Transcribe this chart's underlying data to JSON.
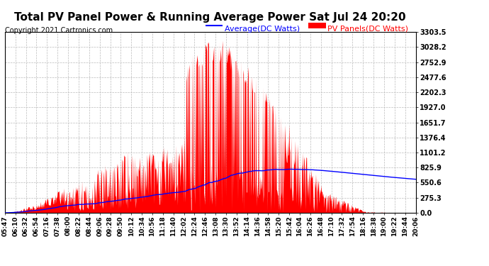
{
  "title": "Total PV Panel Power & Running Average Power Sat Jul 24 20:20",
  "copyright": "Copyright 2021 Cartronics.com",
  "legend_avg": "Average(DC Watts)",
  "legend_pv": "PV Panels(DC Watts)",
  "ymax": 3303.5,
  "ymin": 0.0,
  "yticks": [
    0.0,
    275.3,
    550.6,
    825.9,
    1101.2,
    1376.4,
    1651.7,
    1927.0,
    2202.3,
    2477.6,
    2752.9,
    3028.2,
    3303.5
  ],
  "xtick_labels": [
    "05:47",
    "06:10",
    "06:32",
    "06:54",
    "07:16",
    "07:38",
    "08:00",
    "08:22",
    "08:44",
    "09:06",
    "09:28",
    "09:50",
    "10:12",
    "10:34",
    "10:56",
    "11:18",
    "11:40",
    "12:02",
    "12:24",
    "12:46",
    "13:08",
    "13:30",
    "13:52",
    "14:14",
    "14:36",
    "14:58",
    "15:20",
    "15:42",
    "16:04",
    "16:26",
    "16:48",
    "17:10",
    "17:32",
    "17:54",
    "18:16",
    "18:38",
    "19:00",
    "19:22",
    "19:44",
    "20:06"
  ],
  "background_color": "#ffffff",
  "grid_color": "#bbbbbb",
  "pv_color": "#ff0000",
  "avg_color": "#0000ff",
  "title_fontsize": 11,
  "axis_fontsize": 7,
  "copyright_fontsize": 7
}
